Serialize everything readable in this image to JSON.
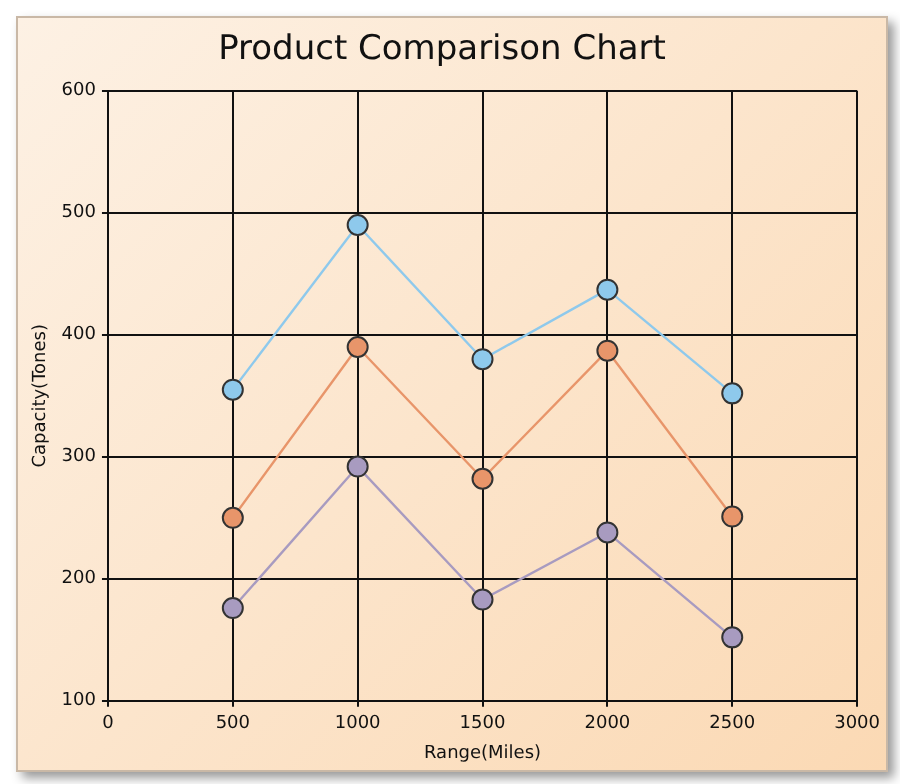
{
  "chart_data": {
    "type": "line",
    "title": "Product Comparison Chart",
    "xlabel": "Range(Miles)",
    "ylabel": "Capacity(Tones)",
    "x": [
      500,
      1000,
      1500,
      2000,
      2500
    ],
    "series": [
      {
        "color": "#8ec9ec",
        "values": [
          355,
          490,
          380,
          437,
          352
        ]
      },
      {
        "color": "#e8956a",
        "values": [
          250,
          390,
          282,
          387,
          251
        ]
      },
      {
        "color": "#a89bc0",
        "values": [
          176,
          292,
          183,
          238,
          152
        ]
      }
    ],
    "xlim": [
      0,
      3000
    ],
    "xticks": [
      0,
      500,
      1000,
      1500,
      2000,
      2500,
      3000
    ],
    "ylim": [
      100,
      600
    ],
    "yticks": [
      100,
      200,
      300,
      400,
      500,
      600
    ],
    "grid": true,
    "legend": false,
    "marker": "circle",
    "line_style": "solid"
  }
}
